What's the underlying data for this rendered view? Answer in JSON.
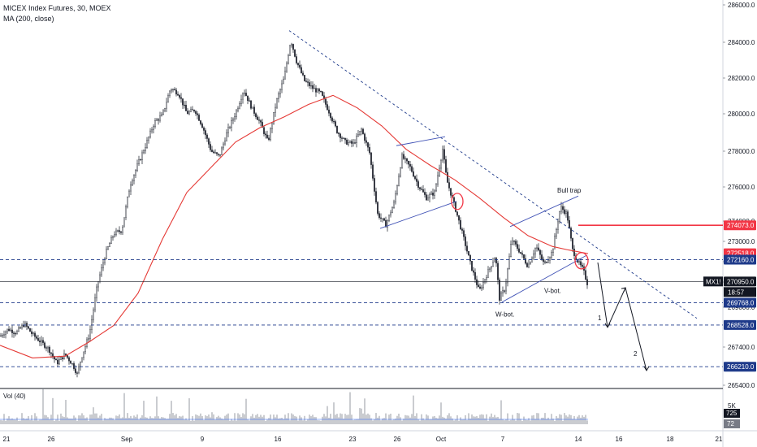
{
  "header": {
    "title": "MICEX Index Futures, 30, MOEX",
    "ma_label": "MA (200, close)",
    "vol_label": "Vol (40)"
  },
  "colors": {
    "candle": "#131722",
    "ma": "#e53935",
    "trend": "#3f51b5",
    "dashed": "#1e3a8a",
    "resistance": "#f23645",
    "tag_blue": "#1e3a8a",
    "tag_red": "#f23645",
    "tag_dark": "#131722"
  },
  "chart_data": {
    "type": "candlestick",
    "price_axis": {
      "range": [
        265000,
        286600
      ],
      "ticks": [
        "286000.0",
        "284000.0",
        "282000.0",
        "280000.0",
        "278000.0",
        "276000.0",
        "274000.0",
        "273000.0",
        "272000.0",
        "271000.0",
        "269000.0",
        "267400.0",
        "265400.0"
      ]
    },
    "time_axis": {
      "labels": [
        "21",
        "26",
        "Sep",
        "9",
        "16",
        "23",
        "26",
        "Oct",
        "7",
        "14",
        "16",
        "18",
        "21"
      ]
    },
    "price_path": [
      [
        0,
        267900
      ],
      [
        10,
        268300
      ],
      [
        20,
        268100
      ],
      [
        30,
        268600
      ],
      [
        40,
        268000
      ],
      [
        50,
        267600
      ],
      [
        60,
        267200
      ],
      [
        70,
        266400
      ],
      [
        80,
        266900
      ],
      [
        90,
        266300
      ],
      [
        95,
        265800
      ],
      [
        100,
        266700
      ],
      [
        110,
        268000
      ],
      [
        120,
        270800
      ],
      [
        130,
        272500
      ],
      [
        140,
        273600
      ],
      [
        150,
        273800
      ],
      [
        160,
        276300
      ],
      [
        170,
        277500
      ],
      [
        180,
        278600
      ],
      [
        190,
        279800
      ],
      [
        200,
        280200
      ],
      [
        210,
        281700
      ],
      [
        220,
        281400
      ],
      [
        230,
        280300
      ],
      [
        240,
        280500
      ],
      [
        250,
        279500
      ],
      [
        260,
        278200
      ],
      [
        270,
        277900
      ],
      [
        280,
        279300
      ],
      [
        290,
        280300
      ],
      [
        300,
        281600
      ],
      [
        310,
        280600
      ],
      [
        320,
        279800
      ],
      [
        330,
        278700
      ],
      [
        340,
        280900
      ],
      [
        350,
        282300
      ],
      [
        358,
        284400
      ],
      [
        365,
        283200
      ],
      [
        375,
        282100
      ],
      [
        385,
        281700
      ],
      [
        395,
        281400
      ],
      [
        405,
        280400
      ],
      [
        415,
        279300
      ],
      [
        425,
        278700
      ],
      [
        435,
        278600
      ],
      [
        445,
        279400
      ],
      [
        455,
        278100
      ],
      [
        465,
        274700
      ],
      [
        475,
        274100
      ],
      [
        485,
        275300
      ],
      [
        495,
        277900
      ],
      [
        505,
        277300
      ],
      [
        515,
        276300
      ],
      [
        525,
        275600
      ],
      [
        535,
        275900
      ],
      [
        545,
        278300
      ],
      [
        550,
        276600
      ],
      [
        560,
        275100
      ],
      [
        570,
        273500
      ],
      [
        580,
        271800
      ],
      [
        590,
        270400
      ],
      [
        600,
        271400
      ],
      [
        610,
        272400
      ],
      [
        615,
        270000
      ],
      [
        622,
        270600
      ],
      [
        630,
        273300
      ],
      [
        640,
        272600
      ],
      [
        650,
        271800
      ],
      [
        660,
        272900
      ],
      [
        670,
        271900
      ],
      [
        680,
        272600
      ],
      [
        690,
        275100
      ],
      [
        698,
        274700
      ],
      [
        705,
        272700
      ],
      [
        712,
        272000
      ],
      [
        718,
        271600
      ],
      [
        724,
        270700
      ]
    ],
    "moving_average": [
      [
        0,
        267400
      ],
      [
        40,
        266700
      ],
      [
        80,
        266800
      ],
      [
        110,
        267600
      ],
      [
        140,
        268500
      ],
      [
        170,
        270300
      ],
      [
        200,
        273300
      ],
      [
        230,
        275900
      ],
      [
        260,
        277300
      ],
      [
        290,
        278700
      ],
      [
        320,
        279500
      ],
      [
        350,
        280100
      ],
      [
        380,
        280800
      ],
      [
        410,
        281300
      ],
      [
        440,
        280600
      ],
      [
        470,
        279600
      ],
      [
        500,
        278300
      ],
      [
        530,
        277400
      ],
      [
        560,
        276600
      ],
      [
        590,
        275600
      ],
      [
        620,
        274500
      ],
      [
        650,
        273500
      ],
      [
        680,
        272900
      ],
      [
        700,
        272700
      ],
      [
        724,
        272500
      ]
    ],
    "levels": [
      {
        "label": "274073.0",
        "price": 274073,
        "style": "resistance",
        "tag": "tag_red"
      },
      {
        "label": "272518.0",
        "price": 272518,
        "style": "none",
        "tag": "tag_red"
      },
      {
        "label": "272160.0",
        "price": 272160,
        "style": "dashed",
        "tag": "tag_blue"
      },
      {
        "label": "270950.0",
        "price": 270950,
        "style": "solid",
        "tag": "tag_dark"
      },
      {
        "label": "269768.0",
        "price": 269768,
        "style": "dashed",
        "tag": "tag_blue"
      },
      {
        "label": "268528.0",
        "price": 268528,
        "style": "dashed",
        "tag": "tag_blue"
      },
      {
        "label": "266210.0",
        "price": 266210,
        "style": "dashed",
        "tag": "tag_blue"
      }
    ],
    "symbol_tag": "MX1!",
    "countdown": "18:57",
    "volume": {
      "axis_label": "5K",
      "last_value": "725",
      "ma_value": "72"
    },
    "annotations": [
      "Bull trap",
      "W-bot.",
      "V-bot.",
      "1",
      "2"
    ]
  }
}
